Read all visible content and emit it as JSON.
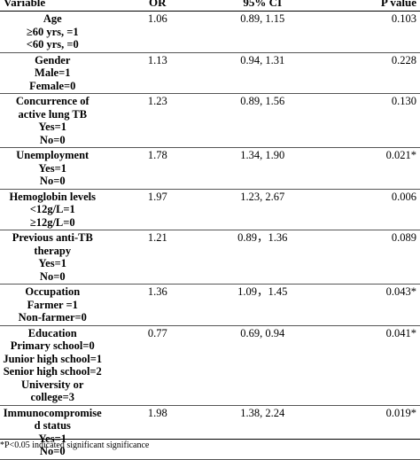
{
  "table": {
    "headers": {
      "variable": "Variable",
      "or": "OR",
      "ci": "95% CI",
      "p": "P value"
    },
    "rows": [
      {
        "lines": [
          "Age",
          "≥60 yrs, =1",
          "<60 yrs, =0"
        ],
        "or": "1.06",
        "ci": "0.89, 1.15",
        "p": "0.103"
      },
      {
        "lines": [
          "Gender",
          "Male=1",
          "Female=0"
        ],
        "or": "1.13",
        "ci": "0.94, 1.31",
        "p": "0.228"
      },
      {
        "lines": [
          "Concurrence of",
          "active lung TB",
          "Yes=1",
          "No=0"
        ],
        "or": "1.23",
        "ci": "0.89, 1.56",
        "p": "0.130"
      },
      {
        "lines": [
          "Unemployment",
          "Yes=1",
          "No=0"
        ],
        "or": "1.78",
        "ci": "1.34, 1.90",
        "p": "0.021*"
      },
      {
        "lines": [
          "Hemoglobin levels",
          "<12g/L=1",
          "≥12g/L=0"
        ],
        "or": "1.97",
        "ci": "1.23, 2.67",
        "p": "0.006"
      },
      {
        "lines": [
          "Previous anti-TB",
          "therapy",
          "Yes=1",
          "No=0"
        ],
        "or": "1.21",
        "ci": "0.89，1.36",
        "p": "0.089"
      },
      {
        "lines": [
          "Occupation",
          "Farmer =1",
          "Non-farmer=0"
        ],
        "or": "1.36",
        "ci": "1.09，1.45",
        "p": "0.043*"
      },
      {
        "lines": [
          "Education",
          "Primary school=0",
          "Junior high school=1",
          "Senior high school=2",
          "University or",
          "college=3"
        ],
        "or": "0.77",
        "ci": "0.69, 0.94",
        "p": "0.041*"
      },
      {
        "lines": [
          "Immunocompromise",
          "d status",
          "Yes=1",
          "No=0"
        ],
        "or": "1.98",
        "ci": "1.38, 2.24",
        "p": "0.019*"
      }
    ]
  },
  "footnote": "*P<0.05 indicated significant significance"
}
